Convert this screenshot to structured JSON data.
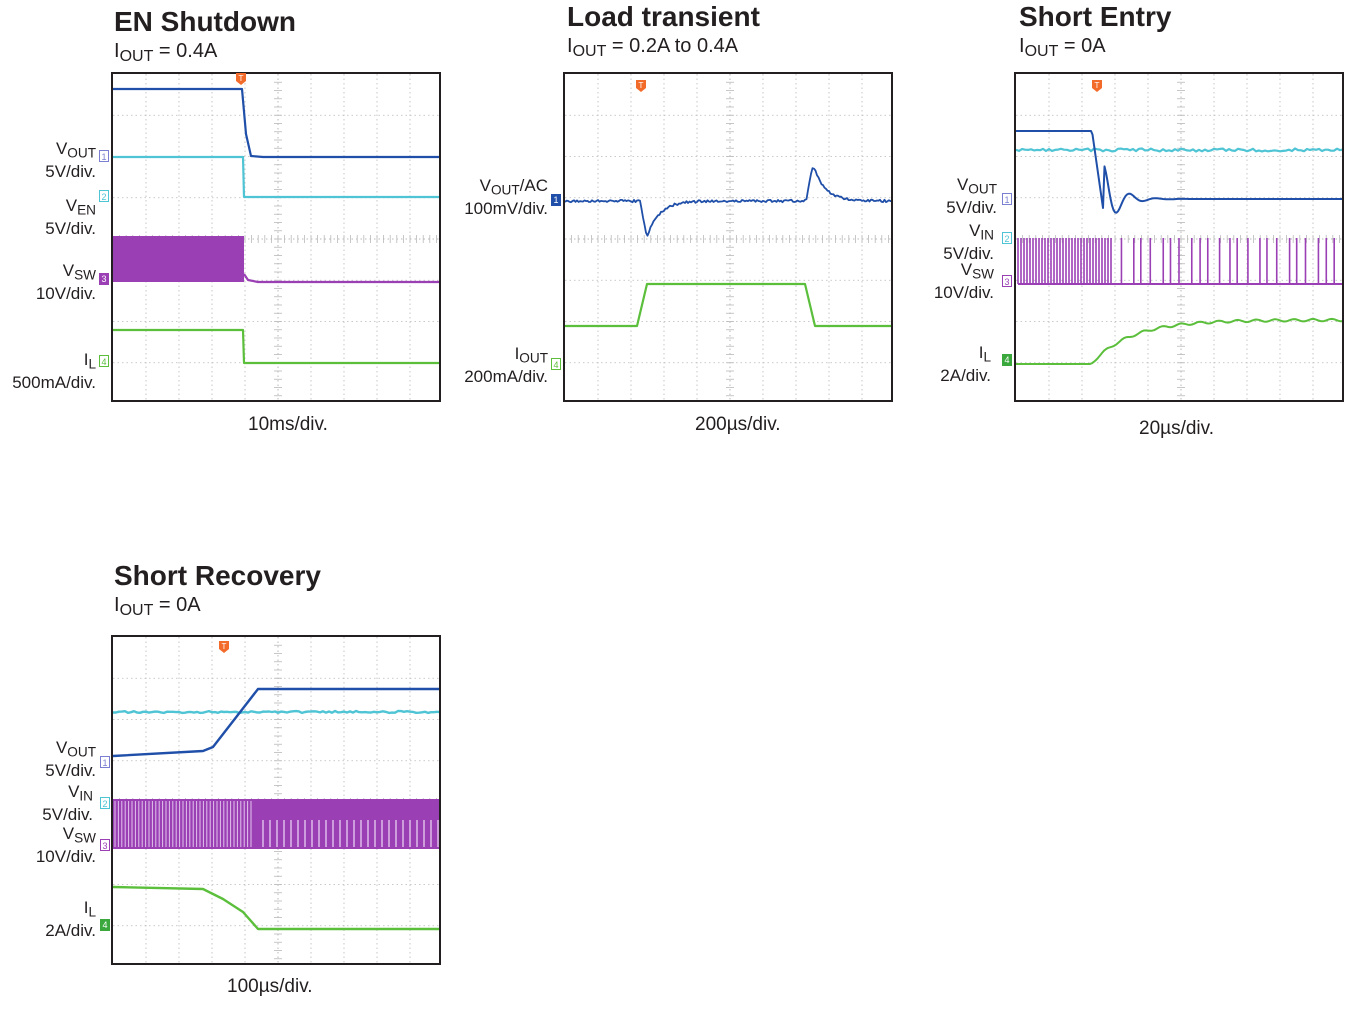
{
  "colors": {
    "vout": "#1f4fa8",
    "cyan": "#4fc4d4",
    "sw": "#9b3fb5",
    "il": "#5bbf3c",
    "trigger": "#f26b2a",
    "frame": "#231f20",
    "grid": "#b9b9b9"
  },
  "chart_data": [
    {
      "type": "line",
      "title": "EN Shutdown",
      "subtitle": {
        "base": "I",
        "sub": "OUT",
        "rest": " = 0.4A"
      },
      "xlabel": "10ms/div.",
      "series": [
        {
          "name": "VOUT",
          "label": {
            "base": "V",
            "sub": "OUT",
            "scale": "5V/div."
          },
          "marker": "1"
        },
        {
          "name": "VEN",
          "label": {
            "base": "V",
            "sub": "EN",
            "scale": "5V/div."
          },
          "marker": "2"
        },
        {
          "name": "VSW",
          "label": {
            "base": "V",
            "sub": "SW",
            "scale": "10V/div."
          },
          "marker": "3"
        },
        {
          "name": "IL",
          "label": {
            "base": "I",
            "sub": "L",
            "scale": "500mA/div."
          },
          "marker": "4"
        }
      ]
    },
    {
      "type": "line",
      "title": "Load transient",
      "subtitle": {
        "base": "I",
        "sub": "OUT",
        "rest": " = 0.2A to 0.4A"
      },
      "xlabel": "200µs/div.",
      "series": [
        {
          "name": "VOUT/AC",
          "label": {
            "base": "V",
            "sub": "OUT",
            "after": "/AC",
            "scale": "100mV/div."
          },
          "marker": "1"
        },
        {
          "name": "IOUT",
          "label": {
            "base": "I",
            "sub": "OUT",
            "scale": "200mA/div."
          },
          "marker": "4"
        }
      ]
    },
    {
      "type": "line",
      "title": "Short Entry",
      "subtitle": {
        "base": "I",
        "sub": "OUT",
        "rest": " = 0A"
      },
      "xlabel": "20µs/div.",
      "series": [
        {
          "name": "VOUT",
          "label": {
            "base": "V",
            "sub": "OUT",
            "scale": "5V/div."
          },
          "marker": "1"
        },
        {
          "name": "VIN",
          "label": {
            "base": "V",
            "sub": "IN",
            "scale": "5V/div."
          },
          "marker": "2"
        },
        {
          "name": "VSW",
          "label": {
            "base": "V",
            "sub": "SW",
            "scale": "10V/div."
          },
          "marker": "3"
        },
        {
          "name": "IL",
          "label": {
            "base": "I",
            "sub": "L",
            "scale": "2A/div."
          },
          "marker": "4"
        }
      ]
    },
    {
      "type": "line",
      "title": "Short Recovery",
      "subtitle": {
        "base": "I",
        "sub": "OUT",
        "rest": " = 0A"
      },
      "xlabel": "100µs/div.",
      "series": [
        {
          "name": "VOUT",
          "label": {
            "base": "V",
            "sub": "OUT",
            "scale": "5V/div."
          },
          "marker": "1"
        },
        {
          "name": "VIN",
          "label": {
            "base": "V",
            "sub": "IN",
            "scale": "5V/div."
          },
          "marker": "2"
        },
        {
          "name": "VSW",
          "label": {
            "base": "V",
            "sub": "SW",
            "scale": "10V/div."
          },
          "marker": "3"
        },
        {
          "name": "IL",
          "label": {
            "base": "I",
            "sub": "L",
            "scale": "2A/div."
          },
          "marker": "4"
        }
      ]
    }
  ]
}
